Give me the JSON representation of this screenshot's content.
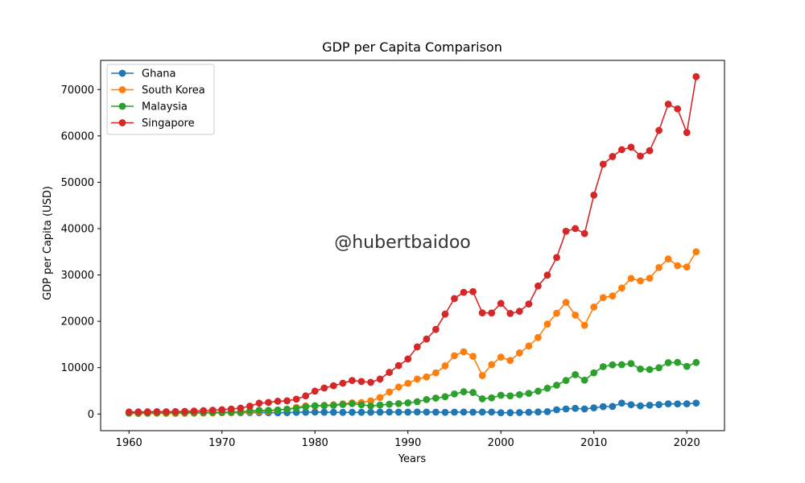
{
  "chart_data": {
    "type": "line",
    "title": "GDP per Capita Comparison",
    "xlabel": "Years",
    "ylabel": "GDP per Capita (USD)",
    "xlim": [
      1956.95,
      2024.05
    ],
    "ylim": [
      -3600,
      76300
    ],
    "xticks": [
      1960,
      1970,
      1980,
      1990,
      2000,
      2010,
      2020
    ],
    "yticks": [
      0,
      10000,
      20000,
      30000,
      40000,
      50000,
      60000,
      70000
    ],
    "grid": false,
    "legend_position": "top-left",
    "x": [
      1960,
      1961,
      1962,
      1963,
      1964,
      1965,
      1966,
      1967,
      1968,
      1969,
      1970,
      1971,
      1972,
      1973,
      1974,
      1975,
      1976,
      1977,
      1978,
      1979,
      1980,
      1981,
      1982,
      1983,
      1984,
      1985,
      1986,
      1987,
      1988,
      1989,
      1990,
      1991,
      1992,
      1993,
      1994,
      1995,
      1996,
      1997,
      1998,
      1999,
      2000,
      2001,
      2002,
      2003,
      2004,
      2005,
      2006,
      2007,
      2008,
      2009,
      2010,
      2011,
      2012,
      2013,
      2014,
      2015,
      2016,
      2017,
      2018,
      2019,
      2020,
      2021
    ],
    "series": [
      {
        "name": "Ghana",
        "color": "#1f77b4",
        "values": [
          180,
          185,
          190,
          200,
          215,
          240,
          230,
          210,
          200,
          230,
          260,
          270,
          250,
          290,
          300,
          280,
          270,
          300,
          350,
          380,
          410,
          380,
          370,
          340,
          360,
          360,
          380,
          400,
          420,
          400,
          400,
          440,
          420,
          390,
          350,
          390,
          410,
          400,
          410,
          420,
          270,
          280,
          310,
          380,
          440,
          500,
          920,
          1090,
          1220,
          1090,
          1330,
          1590,
          1630,
          2350,
          2000,
          1750,
          1900,
          2030,
          2200,
          2180,
          2200,
          2350
        ]
      },
      {
        "name": "South Korea",
        "color": "#ff7f0e",
        "values": [
          160,
          95,
          110,
          145,
          125,
          110,
          135,
          165,
          200,
          245,
          280,
          300,
          325,
          410,
          560,
          620,
          830,
          1050,
          1420,
          1750,
          1720,
          1880,
          1990,
          2200,
          2420,
          2480,
          2830,
          3550,
          4750,
          5810,
          6600,
          7530,
          8000,
          8880,
          10390,
          12580,
          13420,
          12450,
          8290,
          10670,
          12260,
          11560,
          13170,
          14670,
          16500,
          19400,
          21740,
          24090,
          21350,
          19140,
          23090,
          25100,
          25460,
          27180,
          29250,
          28730,
          29290,
          31600,
          33450,
          32000,
          31720,
          35000
        ]
      },
      {
        "name": "Malaysia",
        "color": "#2ca02c",
        "values": [
          240,
          250,
          265,
          285,
          300,
          310,
          320,
          320,
          330,
          370,
          370,
          400,
          450,
          660,
          800,
          780,
          870,
          1030,
          1240,
          1550,
          1790,
          1780,
          1860,
          2050,
          2230,
          2000,
          1730,
          1930,
          2100,
          2240,
          2400,
          2650,
          3110,
          3430,
          3730,
          4330,
          4790,
          4640,
          3270,
          3480,
          4040,
          3910,
          4170,
          4460,
          4930,
          5550,
          6210,
          7240,
          8480,
          7300,
          8880,
          10210,
          10600,
          10640,
          10880,
          9700,
          9600,
          9980,
          11070,
          11130,
          10270,
          11110
        ]
      },
      {
        "name": "Singapore",
        "color": "#d62728",
        "values": [
          430,
          450,
          470,
          510,
          485,
          520,
          565,
          625,
          710,
          810,
          925,
          1070,
          1260,
          1690,
          2340,
          2490,
          2750,
          2840,
          3190,
          3900,
          4930,
          5600,
          6100,
          6640,
          7240,
          7010,
          6830,
          7530,
          8980,
          10440,
          11860,
          14490,
          16170,
          18250,
          21550,
          24910,
          26260,
          26400,
          21830,
          21800,
          23850,
          21700,
          22160,
          23730,
          27620,
          29960,
          33770,
          39430,
          40010,
          38930,
          47230,
          53890,
          55550,
          57030,
          57570,
          55650,
          56830,
          61180,
          66860,
          65830,
          60730,
          72790
        ]
      }
    ],
    "annotation": "@hubertbaidoo"
  }
}
